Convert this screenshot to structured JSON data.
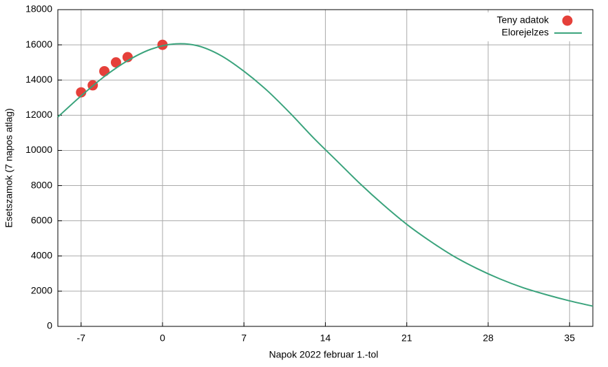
{
  "chart_data": {
    "type": "line",
    "xlabel": "Napok 2022 februar 1.-tol",
    "ylabel": "Esetszamok (7 napos atlag)",
    "xlim": [
      -9,
      37
    ],
    "xticks": [
      -7,
      0,
      7,
      14,
      21,
      28,
      35
    ],
    "ylim": [
      0,
      18000
    ],
    "yticks": [
      0,
      2000,
      4000,
      6000,
      8000,
      10000,
      12000,
      14000,
      16000,
      18000
    ],
    "grid": true,
    "legend": "top-right",
    "series": [
      {
        "name": "Teny adatok",
        "type": "scatter",
        "color": "#e5403a",
        "x": [
          -7,
          -6,
          -5,
          -4,
          -3,
          0
        ],
        "values": [
          13300,
          13700,
          14500,
          15000,
          15300,
          16000
        ]
      },
      {
        "name": "Elorejelzes",
        "type": "line",
        "color": "#3aa37c",
        "x": [
          -9,
          -7,
          -5,
          -3,
          -1,
          1,
          3,
          5,
          7,
          9,
          11,
          13,
          15,
          17,
          19,
          21,
          23,
          25,
          27,
          29,
          31,
          33,
          35,
          37
        ],
        "values": [
          11900,
          13100,
          14200,
          15100,
          15750,
          16050,
          15950,
          15400,
          14500,
          13400,
          12100,
          10700,
          9400,
          8100,
          6900,
          5800,
          4850,
          4000,
          3300,
          2700,
          2200,
          1800,
          1450,
          1150
        ]
      }
    ]
  }
}
